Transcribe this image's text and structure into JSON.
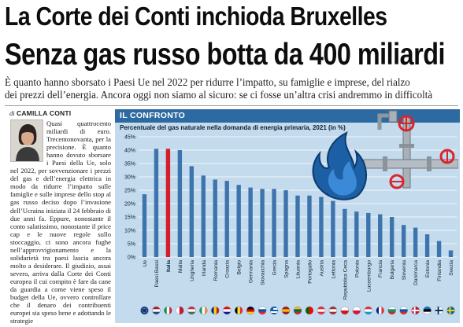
{
  "headline": {
    "line1": "La Corte dei Conti inchioda Bruxelles",
    "line2": "Senza gas russo botta da 400 miliardi"
  },
  "deck": {
    "line1": "È quanto hanno sborsato i Paesi Ue nel 2022 per ridurre l’impatto, su famiglie e imprese, del rialzo",
    "line2": "dei prezzi dell’energia. Ancora oggi non siamo al sicuro: se ci fosse un’altra crisi andremmo in difficoltà"
  },
  "byline": {
    "prefix": "di",
    "author": "CAMILLA CONTI"
  },
  "article": {
    "text": "Quasi quattro­cento miliardi di euro. Trecento­novanta, per la precisione. È quanto hanno dovuto sborsare i Paesi della Ue, solo nel 2022, per sovven­zionare i prezzi del gas e del­l’energia elettrica in modo da ridurre l’impatto sulle fami­glie e sulle imprese dello stop al gas russo deciso dopo l’in­vasione dell’Ucraina iniziata il 24 febbraio di due anni fa. Eppure, nonostante il conto salatissimo, nonostante il pri­ce cap e le nuove regole sullo stoccaggio, ci sono ancora fu­ghe nell’approvvigionamento e la solidarietà tra paesi lascia ancora molto a desiderare. Il giudizio, assai severo, arriva dalla Corte dei Conti europea il cui compito è fare da cane da guardia a come viene speso il budget della Ue, ovvero con­trollare che il denaro dei con­tribuenti europei sia speso bene e adottando le strategie"
  },
  "panel": {
    "header": "IL CONFRONTO"
  },
  "chart_data": {
    "type": "bar",
    "title": "Percentuale del gas naturale nella domanda di energia primaria, 2021 (in %)",
    "categories": [
      "Ue",
      "Paesi Bassi",
      "Italia",
      "Malta",
      "Ungheria",
      "Irlanda",
      "Romania",
      "Croazia",
      "Belgio",
      "Germania",
      "Slovacchia",
      "Grecia",
      "Spagna",
      "Lituania",
      "Portogallo",
      "Austria",
      "Lettonia",
      "Repubblica Ceca",
      "Polonia",
      "Lussemburgo",
      "Francia",
      "Bulgaria",
      "Slovenia",
      "Danimarca",
      "Estonia",
      "Finlandia",
      "Svezia"
    ],
    "values": [
      23.5,
      40.5,
      40.5,
      40,
      34,
      30.5,
      29,
      28.5,
      27,
      26,
      25.5,
      25.5,
      25,
      23,
      23,
      22.5,
      21,
      18,
      17,
      16.5,
      16,
      15,
      12,
      11,
      8.5,
      6,
      2.5
    ],
    "highlight_index": 2,
    "ylim": [
      0,
      45
    ],
    "yticks": [
      "0%",
      "5%",
      "10%",
      "15%",
      "20%",
      "25%",
      "30%",
      "35%",
      "40%",
      "45%"
    ],
    "grid": true,
    "colors": {
      "bar": "#3e74ad",
      "highlight": "#d21f2a",
      "panel_bg": "#c3dbec",
      "header_bg": "#2d6aa1",
      "grid": "#ffffff",
      "text": "#0d1f33"
    }
  },
  "flags": [
    {
      "country": "Ue",
      "type": "eu"
    },
    {
      "country": "Paesi Bassi",
      "type": "h",
      "colors": [
        "#ae1c28",
        "#ffffff",
        "#21468b"
      ]
    },
    {
      "country": "Italia",
      "type": "v",
      "colors": [
        "#009246",
        "#ffffff",
        "#ce2b37"
      ]
    },
    {
      "country": "Malta",
      "type": "v2",
      "colors": [
        "#ffffff",
        "#cf142b"
      ]
    },
    {
      "country": "Ungheria",
      "type": "h",
      "colors": [
        "#cd2a3e",
        "#ffffff",
        "#436f4d"
      ]
    },
    {
      "country": "Irlanda",
      "type": "v",
      "colors": [
        "#169b62",
        "#ffffff",
        "#ff883e"
      ]
    },
    {
      "country": "Romania",
      "type": "v",
      "colors": [
        "#002b7f",
        "#fcd116",
        "#ce1126"
      ]
    },
    {
      "country": "Croazia",
      "type": "h",
      "colors": [
        "#ff0000",
        "#ffffff",
        "#171796"
      ]
    },
    {
      "country": "Belgio",
      "type": "v",
      "colors": [
        "#000000",
        "#fae042",
        "#ed2939"
      ]
    },
    {
      "country": "Germania",
      "type": "h",
      "colors": [
        "#000000",
        "#dd0000",
        "#ffce00"
      ]
    },
    {
      "country": "Slovacchia",
      "type": "h",
      "colors": [
        "#ffffff",
        "#0b4ea2",
        "#ee1c25"
      ]
    },
    {
      "country": "Grecia",
      "type": "stripes",
      "colors": [
        "#0d5eaf",
        "#ffffff"
      ]
    },
    {
      "country": "Spagna",
      "type": "h",
      "colors": [
        "#aa151b",
        "#f1bf00",
        "#aa151b"
      ]
    },
    {
      "country": "Lituania",
      "type": "h",
      "colors": [
        "#fdb913",
        "#006a44",
        "#c1272d"
      ]
    },
    {
      "country": "Portogallo",
      "type": "v2",
      "colors": [
        "#006600",
        "#ff0000"
      ]
    },
    {
      "country": "Austria",
      "type": "h",
      "colors": [
        "#ed2939",
        "#ffffff",
        "#ed2939"
      ]
    },
    {
      "country": "Lettonia",
      "type": "h",
      "colors": [
        "#9e3039",
        "#ffffff",
        "#9e3039"
      ]
    },
    {
      "country": "Repubblica Ceca",
      "type": "h2",
      "colors": [
        "#ffffff",
        "#d7141a"
      ]
    },
    {
      "country": "Polonia",
      "type": "h2",
      "colors": [
        "#ffffff",
        "#dc143c"
      ]
    },
    {
      "country": "Lussemburgo",
      "type": "h",
      "colors": [
        "#ed2939",
        "#ffffff",
        "#00a1de"
      ]
    },
    {
      "country": "Francia",
      "type": "v",
      "colors": [
        "#002395",
        "#ffffff",
        "#ed2939"
      ]
    },
    {
      "country": "Bulgaria",
      "type": "h",
      "colors": [
        "#ffffff",
        "#00966e",
        "#d62612"
      ]
    },
    {
      "country": "Slovenia",
      "type": "h",
      "colors": [
        "#ffffff",
        "#005da4",
        "#ed1c24"
      ]
    },
    {
      "country": "Danimarca",
      "type": "cross",
      "colors": [
        "#c8102e",
        "#ffffff"
      ]
    },
    {
      "country": "Estonia",
      "type": "h",
      "colors": [
        "#0072ce",
        "#000000",
        "#ffffff"
      ]
    },
    {
      "country": "Finlandia",
      "type": "cross",
      "colors": [
        "#ffffff",
        "#002f6c"
      ]
    },
    {
      "country": "Svezia",
      "type": "cross",
      "colors": [
        "#006aa7",
        "#fecc00"
      ]
    }
  ]
}
